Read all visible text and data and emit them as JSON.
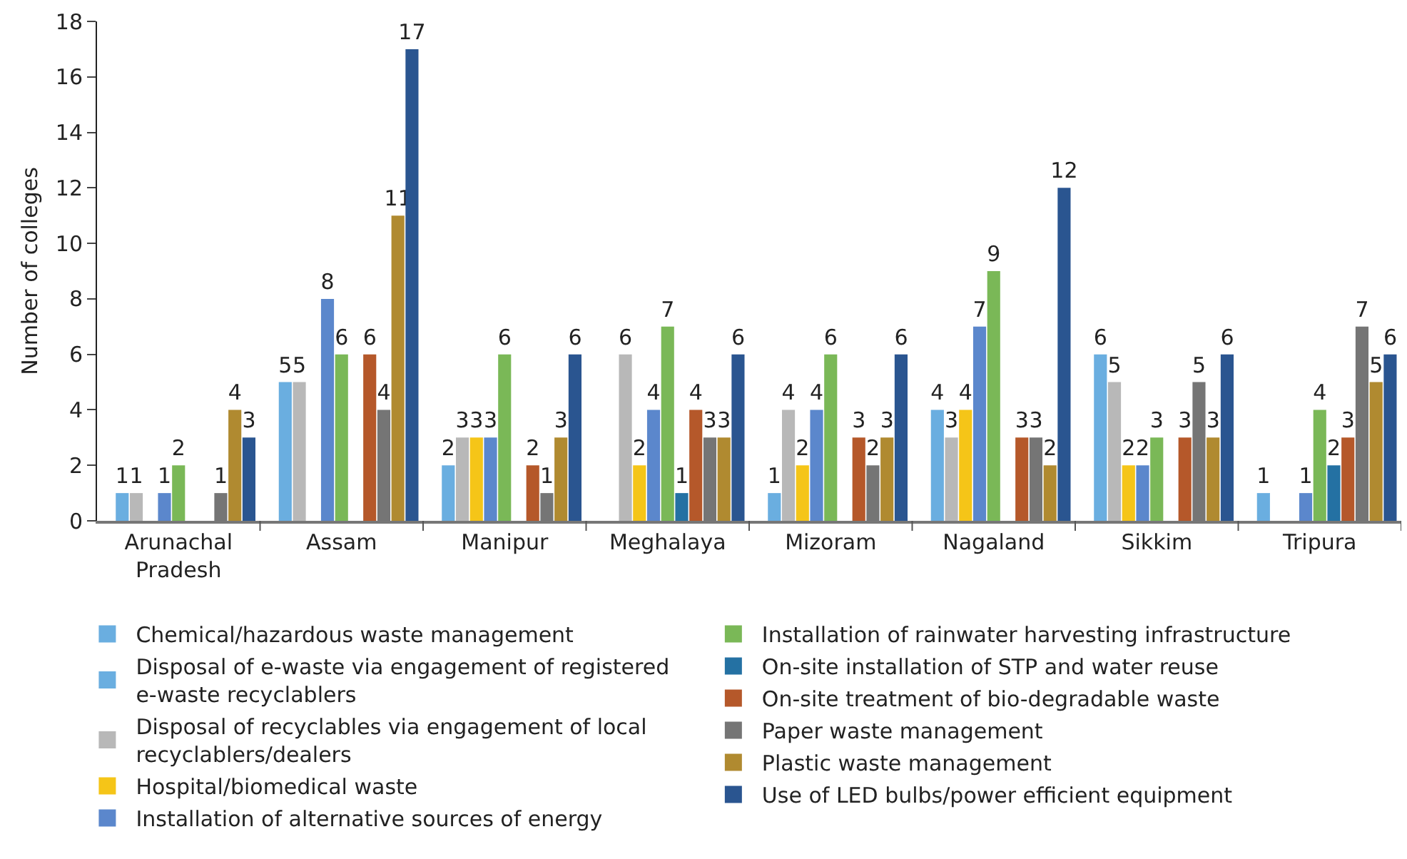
{
  "chart_data": {
    "type": "bar",
    "ylabel": "Number of colleges",
    "categories": [
      "Arunachal Pradesh",
      "Assam",
      "Manipur",
      "Meghalaya",
      "Mizoram",
      "Nagaland",
      "Sikkim",
      "Tripura"
    ],
    "series": [
      {
        "name": "Chemical/hazardous waste management",
        "color": "#6aaee0",
        "values": [
          null,
          null,
          null,
          null,
          null,
          null,
          null,
          null
        ]
      },
      {
        "name": "Disposal of e-waste via engagement of registered e-waste recyclablers",
        "color": "#6aaee0",
        "values": [
          1,
          5,
          2,
          null,
          1,
          4,
          6,
          1
        ]
      },
      {
        "name": "Disposal of recyclables via engagement of local recyclablers/dealers",
        "color": "#b8b8b8",
        "values": [
          1,
          5,
          3,
          6,
          4,
          3,
          5,
          null
        ]
      },
      {
        "name": "Hospital/biomedical waste",
        "color": "#f5c518",
        "values": [
          null,
          null,
          3,
          2,
          2,
          4,
          2,
          null
        ]
      },
      {
        "name": "Installation of alternative sources of energy",
        "color": "#5b87cc",
        "values": [
          1,
          8,
          3,
          4,
          4,
          7,
          2,
          1
        ]
      },
      {
        "name": "Installation of rainwater harvesting infrastructure",
        "color": "#7ab857",
        "values": [
          2,
          6,
          6,
          7,
          6,
          9,
          3,
          4
        ]
      },
      {
        "name": "On-site installation of STP and water reuse",
        "color": "#2471a3",
        "values": [
          null,
          null,
          null,
          1,
          null,
          null,
          null,
          2
        ]
      },
      {
        "name": "On-site treatment of bio-degradable waste",
        "color": "#b5582a",
        "values": [
          null,
          6,
          2,
          4,
          3,
          3,
          3,
          3
        ]
      },
      {
        "name": "Paper waste management",
        "color": "#757575",
        "values": [
          1,
          4,
          1,
          3,
          2,
          3,
          5,
          7
        ]
      },
      {
        "name": "Plastic waste management",
        "color": "#b08a30",
        "values": [
          4,
          11,
          3,
          3,
          3,
          2,
          3,
          5
        ]
      },
      {
        "name": "Use of LED bulbs/power efficient equipment",
        "color": "#2a5590",
        "values": [
          3,
          17,
          6,
          6,
          6,
          12,
          6,
          6
        ]
      }
    ],
    "ylim": [
      0,
      18
    ],
    "yticks": [
      0,
      2,
      4,
      6,
      8,
      10,
      12,
      14,
      16,
      18
    ],
    "data_labels": true,
    "grid": false,
    "legend": "bottom"
  }
}
